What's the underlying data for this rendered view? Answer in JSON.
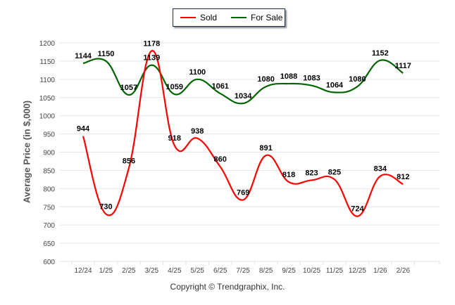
{
  "chart_data": {
    "type": "line",
    "title": "",
    "xlabel": "",
    "ylabel": "Average Price (in $,000)",
    "ylim": [
      600,
      1200
    ],
    "yticks": [
      600,
      650,
      700,
      750,
      800,
      850,
      900,
      950,
      1000,
      1050,
      1100,
      1150,
      1200
    ],
    "grid": true,
    "legend_position": "top-center",
    "categories": [
      "12/24",
      "1/25",
      "2/25",
      "3/25",
      "4/25",
      "5/25",
      "6/25",
      "7/25",
      "8/25",
      "9/25",
      "10/25",
      "11/25",
      "12/25",
      "1/26",
      "2/26"
    ],
    "series": [
      {
        "name": "Sold",
        "color": "#ff0000",
        "values": [
          944,
          730,
          856,
          1178,
          918,
          938,
          860,
          769,
          891,
          818,
          823,
          825,
          724,
          834,
          812
        ]
      },
      {
        "name": "For Sale",
        "color": "#006400",
        "values": [
          1144,
          1150,
          1057,
          1139,
          1059,
          1100,
          1061,
          1034,
          1080,
          1088,
          1083,
          1064,
          1080,
          1152,
          1117
        ]
      }
    ],
    "footer": "Copyright © Trendgraphix, Inc."
  }
}
